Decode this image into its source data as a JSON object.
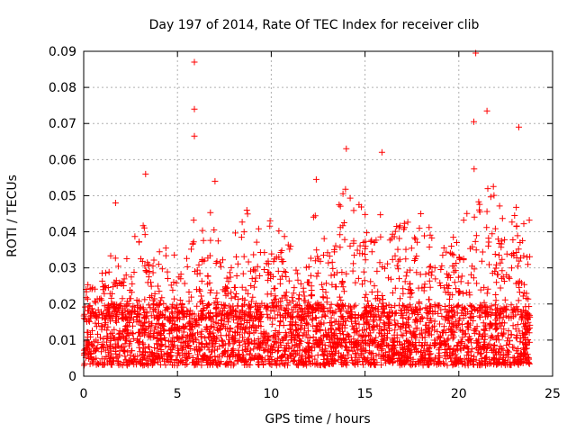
{
  "chart_data": {
    "type": "scatter",
    "title": "Day 197 of 2014, Rate Of TEC Index for receiver clib",
    "xlabel": "GPS time / hours",
    "ylabel": "ROTI / TECUs",
    "xlim": [
      0,
      25
    ],
    "ylim": [
      0,
      0.09
    ],
    "xticks": [
      0,
      5,
      10,
      15,
      20,
      25
    ],
    "yticks": [
      0,
      0.01,
      0.02,
      0.03,
      0.04,
      0.05,
      0.06,
      0.07,
      0.08,
      0.09
    ],
    "xtick_labels": [
      "0",
      "5",
      "10",
      "15",
      "20",
      "25"
    ],
    "ytick_labels": [
      "0",
      "0.01",
      "0.02",
      "0.03",
      "0.04",
      "0.05",
      "0.06",
      "0.07",
      "0.08",
      "0.09"
    ],
    "grid": true,
    "marker": "+",
    "color": "#ff0000",
    "x_data_range": [
      0,
      23.8
    ],
    "typical_band": [
      0.003,
      0.02
    ],
    "notable_points": [
      {
        "x": 5.9,
        "y": 0.087
      },
      {
        "x": 5.9,
        "y": 0.074
      },
      {
        "x": 20.9,
        "y": 0.0895
      },
      {
        "x": 21.5,
        "y": 0.0735
      },
      {
        "x": 20.8,
        "y": 0.0705
      },
      {
        "x": 23.2,
        "y": 0.069
      },
      {
        "x": 5.9,
        "y": 0.0665
      },
      {
        "x": 14.0,
        "y": 0.063
      },
      {
        "x": 15.9,
        "y": 0.062
      },
      {
        "x": 3.3,
        "y": 0.056
      },
      {
        "x": 12.4,
        "y": 0.0545
      },
      {
        "x": 7.0,
        "y": 0.054
      },
      {
        "x": 1.7,
        "y": 0.048
      },
      {
        "x": 8.7,
        "y": 0.046
      }
    ],
    "peak_envelope": [
      {
        "x": 0.2,
        "y": 0.033
      },
      {
        "x": 0.8,
        "y": 0.028
      },
      {
        "x": 1.2,
        "y": 0.037
      },
      {
        "x": 1.7,
        "y": 0.034
      },
      {
        "x": 2.2,
        "y": 0.034
      },
      {
        "x": 2.7,
        "y": 0.042
      },
      {
        "x": 3.3,
        "y": 0.045
      },
      {
        "x": 3.8,
        "y": 0.033
      },
      {
        "x": 4.4,
        "y": 0.038
      },
      {
        "x": 4.9,
        "y": 0.033
      },
      {
        "x": 5.5,
        "y": 0.042
      },
      {
        "x": 5.9,
        "y": 0.055
      },
      {
        "x": 6.4,
        "y": 0.04
      },
      {
        "x": 7.0,
        "y": 0.052
      },
      {
        "x": 7.6,
        "y": 0.036
      },
      {
        "x": 8.2,
        "y": 0.041
      },
      {
        "x": 8.8,
        "y": 0.046
      },
      {
        "x": 9.4,
        "y": 0.043
      },
      {
        "x": 10.0,
        "y": 0.044
      },
      {
        "x": 10.6,
        "y": 0.041
      },
      {
        "x": 11.2,
        "y": 0.034
      },
      {
        "x": 11.7,
        "y": 0.038
      },
      {
        "x": 12.3,
        "y": 0.045
      },
      {
        "x": 12.9,
        "y": 0.047
      },
      {
        "x": 13.5,
        "y": 0.048
      },
      {
        "x": 14.0,
        "y": 0.058
      },
      {
        "x": 14.6,
        "y": 0.048
      },
      {
        "x": 15.2,
        "y": 0.047
      },
      {
        "x": 15.8,
        "y": 0.057
      },
      {
        "x": 16.4,
        "y": 0.043
      },
      {
        "x": 17.0,
        "y": 0.046
      },
      {
        "x": 17.6,
        "y": 0.05
      },
      {
        "x": 18.2,
        "y": 0.045
      },
      {
        "x": 18.8,
        "y": 0.043
      },
      {
        "x": 19.4,
        "y": 0.035
      },
      {
        "x": 20.0,
        "y": 0.043
      },
      {
        "x": 20.5,
        "y": 0.052
      },
      {
        "x": 21.0,
        "y": 0.062
      },
      {
        "x": 21.5,
        "y": 0.058
      },
      {
        "x": 22.0,
        "y": 0.052
      },
      {
        "x": 22.5,
        "y": 0.05
      },
      {
        "x": 23.0,
        "y": 0.06
      },
      {
        "x": 23.5,
        "y": 0.044
      }
    ]
  }
}
